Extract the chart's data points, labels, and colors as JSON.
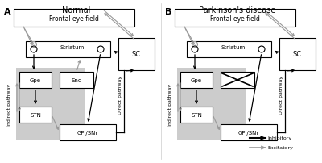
{
  "bg_color": "#ffffff",
  "box_edge": "#000000",
  "gray_bg": "#cccccc",
  "inh_color": "#000000",
  "exc_color": "#999999",
  "title_A": "Normal",
  "title_B": "Parkinson's disease",
  "label_A": "A",
  "label_B": "B",
  "FEF": "Frontal eye field",
  "Striatum": "Striatum",
  "SC": "SC",
  "Snc": "Snc",
  "Gpe": "Gpe",
  "STN": "STN",
  "GPiSNr": "GPi/SNr",
  "legend_inh": "Inhibitory",
  "legend_exc": "Excitatory"
}
